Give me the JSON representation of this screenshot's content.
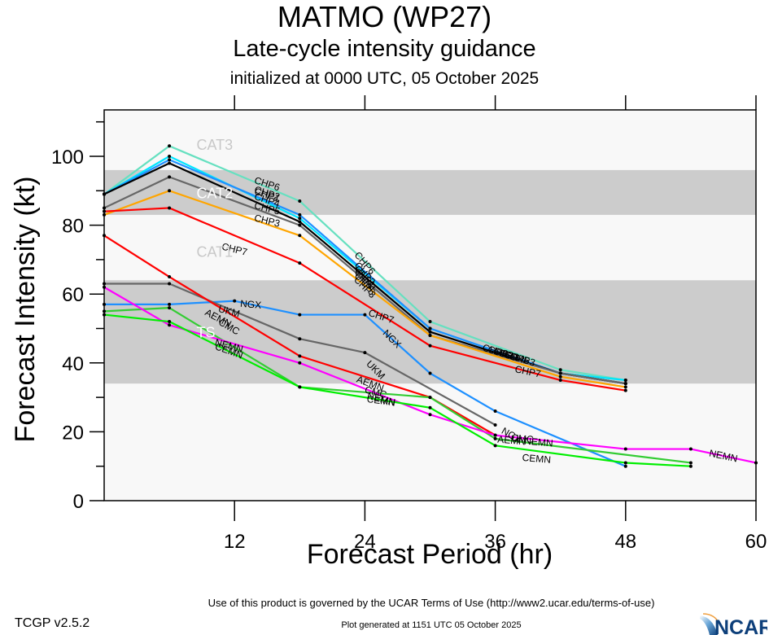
{
  "header": {
    "title": "MATMO (WP27)",
    "subtitle": "Late-cycle intensity guidance",
    "init_line": "initialized at 0000 UTC, 05 October 2025"
  },
  "footer": {
    "terms": "Use of this product is governed by the UCAR Terms of Use (http://www2.ucar.edu/terms-of-use)",
    "version": "TCGP v2.5.2",
    "generated": "Plot generated at 1151 UTC   05 October 2025",
    "logo_text": "NCAR"
  },
  "chart_data": {
    "type": "line",
    "title": "MATMO (WP27)",
    "subtitle": "Late-cycle intensity guidance",
    "xlabel": "Forecast Period (hr)",
    "ylabel": "Forecast Intensity (kt)",
    "xlim": [
      0,
      60
    ],
    "ylim": [
      0,
      113
    ],
    "xticks": [
      12,
      24,
      36,
      48,
      60
    ],
    "yticks": [
      0,
      20,
      40,
      60,
      80,
      100
    ],
    "grid": false,
    "legend": "none (inline line labels)",
    "category_bands": [
      {
        "label": "TS",
        "range": [
          34,
          64
        ],
        "shaded": true
      },
      {
        "label": "CAT1",
        "range": [
          64,
          83
        ],
        "shaded": false
      },
      {
        "label": "CAT2",
        "range": [
          83,
          96
        ],
        "shaded": true
      },
      {
        "label": "CAT3",
        "range": [
          96,
          113
        ],
        "shaded": false
      }
    ],
    "series": [
      {
        "name": "CHP6",
        "color": "#66e0c0",
        "x": [
          0,
          6,
          18,
          30,
          42,
          48
        ],
        "values": [
          89,
          103,
          87,
          52,
          38,
          35
        ]
      },
      {
        "name": "CHP2",
        "color": "#00e5ff",
        "x": [
          0,
          6,
          18,
          30,
          42,
          48
        ],
        "values": [
          89,
          100,
          82,
          50,
          37,
          35
        ]
      },
      {
        "name": "CHP1",
        "color": "#1e90ff",
        "x": [
          0,
          6,
          18,
          30,
          42,
          48
        ],
        "values": [
          89,
          99,
          83,
          50,
          37,
          34
        ]
      },
      {
        "name": "CHP4",
        "color": "#000000",
        "x": [
          0,
          6,
          18,
          30,
          42,
          48
        ],
        "values": [
          89,
          98,
          81,
          49,
          37,
          34
        ]
      },
      {
        "name": "CHP5",
        "color": "#666666",
        "x": [
          0,
          6,
          18,
          30,
          42,
          48
        ],
        "values": [
          85,
          94,
          80,
          48,
          37,
          34
        ]
      },
      {
        "name": "CHP3",
        "color": "#ffa500",
        "x": [
          0,
          6,
          18,
          30,
          42,
          48
        ],
        "values": [
          83,
          90,
          77,
          48,
          36,
          33
        ]
      },
      {
        "name": "CHP7",
        "color": "#ff0000",
        "x": [
          0,
          6,
          18,
          30,
          42,
          48
        ],
        "values": [
          84,
          85,
          69,
          45,
          35,
          32
        ]
      },
      {
        "name": "NGX",
        "color": "#1e90ff",
        "x": [
          0,
          6,
          12,
          18,
          24,
          30,
          36,
          48
        ],
        "values": [
          57,
          57,
          58,
          54,
          54,
          37,
          26,
          10
        ]
      },
      {
        "name": "UKM",
        "color": "#666666",
        "x": [
          0,
          6,
          18,
          24,
          36
        ],
        "values": [
          63,
          63,
          47,
          43,
          22
        ]
      },
      {
        "name": "AEMN",
        "color": "#ff0000",
        "x": [
          0,
          6,
          18,
          30,
          36
        ],
        "values": [
          77,
          65,
          42,
          30,
          19
        ]
      },
      {
        "name": "CMC",
        "color": "#33cc33",
        "x": [
          0,
          6,
          18,
          30,
          36,
          54
        ],
        "values": [
          55,
          56,
          33,
          30,
          18,
          11
        ]
      },
      {
        "name": "NEMN",
        "color": "#ff00ff",
        "x": [
          0,
          6,
          18,
          30,
          36,
          48,
          54,
          60
        ],
        "values": [
          62,
          51,
          40,
          25,
          19,
          15,
          15,
          11
        ]
      },
      {
        "name": "CEMN",
        "color": "#00ee00",
        "x": [
          0,
          6,
          18,
          30,
          36,
          48,
          54
        ],
        "values": [
          54,
          52,
          33,
          27,
          16,
          11,
          10
        ]
      }
    ],
    "line_labels": [
      {
        "text": "CHP6",
        "series": "CHP6",
        "x": 15,
        "y": 92,
        "angle": 18
      },
      {
        "text": "CHP2",
        "series": "CHP2",
        "x": 15,
        "y": 89.3,
        "angle": 18
      },
      {
        "text": "CHP1",
        "series": "CHP1",
        "x": 15,
        "y": 88.8,
        "angle": 18
      },
      {
        "text": "CHP4",
        "series": "CHP4",
        "x": 15,
        "y": 87.3,
        "angle": 18
      },
      {
        "text": "CHP5",
        "series": "CHP5",
        "x": 15,
        "y": 84.9,
        "angle": 14
      },
      {
        "text": "CHP3",
        "series": "CHP3",
        "x": 15,
        "y": 81.3,
        "angle": 14
      },
      {
        "text": "CHP7",
        "series": "CHP7",
        "x": 12,
        "y": 73,
        "angle": 14
      },
      {
        "text": "CHP6",
        "series": "CHP6",
        "x": 24,
        "y": 69,
        "angle": 50
      },
      {
        "text": "CHP2",
        "series": "CHP2",
        "x": 24,
        "y": 66,
        "angle": 50
      },
      {
        "text": "CHP1",
        "series": "CHP1",
        "x": 24,
        "y": 65,
        "angle": 50
      },
      {
        "text": "CHP4",
        "series": "CHP4",
        "x": 24,
        "y": 64,
        "angle": 50
      },
      {
        "text": "CHP5",
        "series": "CHP5",
        "x": 24,
        "y": 63,
        "angle": 50
      },
      {
        "text": "CHP3",
        "series": "CHP3",
        "x": 24,
        "y": 62,
        "angle": 45
      },
      {
        "text": "CHP7",
        "series": "CHP7",
        "x": 25.5,
        "y": 53.5,
        "angle": 18
      },
      {
        "text": "CHP6",
        "series": "CHP6",
        "x": 36,
        "y": 43.5,
        "angle": 16
      },
      {
        "text": "CHP2",
        "series": "CHP2",
        "x": 36.5,
        "y": 43,
        "angle": 16
      },
      {
        "text": "CHP1",
        "series": "CHP1",
        "x": 37,
        "y": 42.5,
        "angle": 16
      },
      {
        "text": "CHP4",
        "series": "CHP4",
        "x": 37.5,
        "y": 42,
        "angle": 16
      },
      {
        "text": "CHP5",
        "series": "CHP5",
        "x": 38,
        "y": 41.5,
        "angle": 16
      },
      {
        "text": "CHP3",
        "series": "CHP3",
        "x": 38.5,
        "y": 41,
        "angle": 16
      },
      {
        "text": "CHP7",
        "series": "CHP7",
        "x": 39,
        "y": 37.5,
        "angle": 12
      },
      {
        "text": "NGX",
        "series": "NGX",
        "x": 13.5,
        "y": 57,
        "angle": 5
      },
      {
        "text": "NGX",
        "series": "NGX",
        "x": 26.5,
        "y": 47,
        "angle": 45
      },
      {
        "text": "NGX",
        "series": "NGX",
        "x": 37.5,
        "y": 19,
        "angle": 30
      },
      {
        "text": "UKM",
        "series": "UKM",
        "x": 11.5,
        "y": 55,
        "angle": 15
      },
      {
        "text": "UKM",
        "series": "UKM",
        "x": 25,
        "y": 38,
        "angle": 45
      },
      {
        "text": "AEMN",
        "series": "AEMN",
        "x": 10.5,
        "y": 53,
        "angle": 28
      },
      {
        "text": "AEMN",
        "series": "AEMN",
        "x": 24.5,
        "y": 34,
        "angle": 20
      },
      {
        "text": "AEMN",
        "series": "AEMN",
        "x": 37.5,
        "y": 17.5,
        "angle": 5
      },
      {
        "text": "CMC",
        "series": "CMC",
        "x": 11.5,
        "y": 50.5,
        "angle": 30
      },
      {
        "text": "CMC",
        "series": "CMC",
        "x": 25,
        "y": 31.5,
        "angle": 15
      },
      {
        "text": "CMC",
        "series": "CMC",
        "x": 38.5,
        "y": 18,
        "angle": 5
      },
      {
        "text": "NEMN",
        "series": "NEMN",
        "x": 11.5,
        "y": 45,
        "angle": 15
      },
      {
        "text": "NEMN",
        "series": "NEMN",
        "x": 25.5,
        "y": 29.5,
        "angle": 15
      },
      {
        "text": "NEMN",
        "series": "NEMN",
        "x": 40,
        "y": 17,
        "angle": 5
      },
      {
        "text": "NEMN",
        "series": "NEMN",
        "x": 57,
        "y": 13,
        "angle": 12
      },
      {
        "text": "CEMN",
        "series": "CEMN",
        "x": 11.5,
        "y": 43.5,
        "angle": 20
      },
      {
        "text": "CEMN",
        "series": "CEMN",
        "x": 25.5,
        "y": 29,
        "angle": 8
      },
      {
        "text": "CEMN",
        "series": "CEMN",
        "x": 39.8,
        "y": 12.2,
        "angle": 5
      }
    ]
  }
}
